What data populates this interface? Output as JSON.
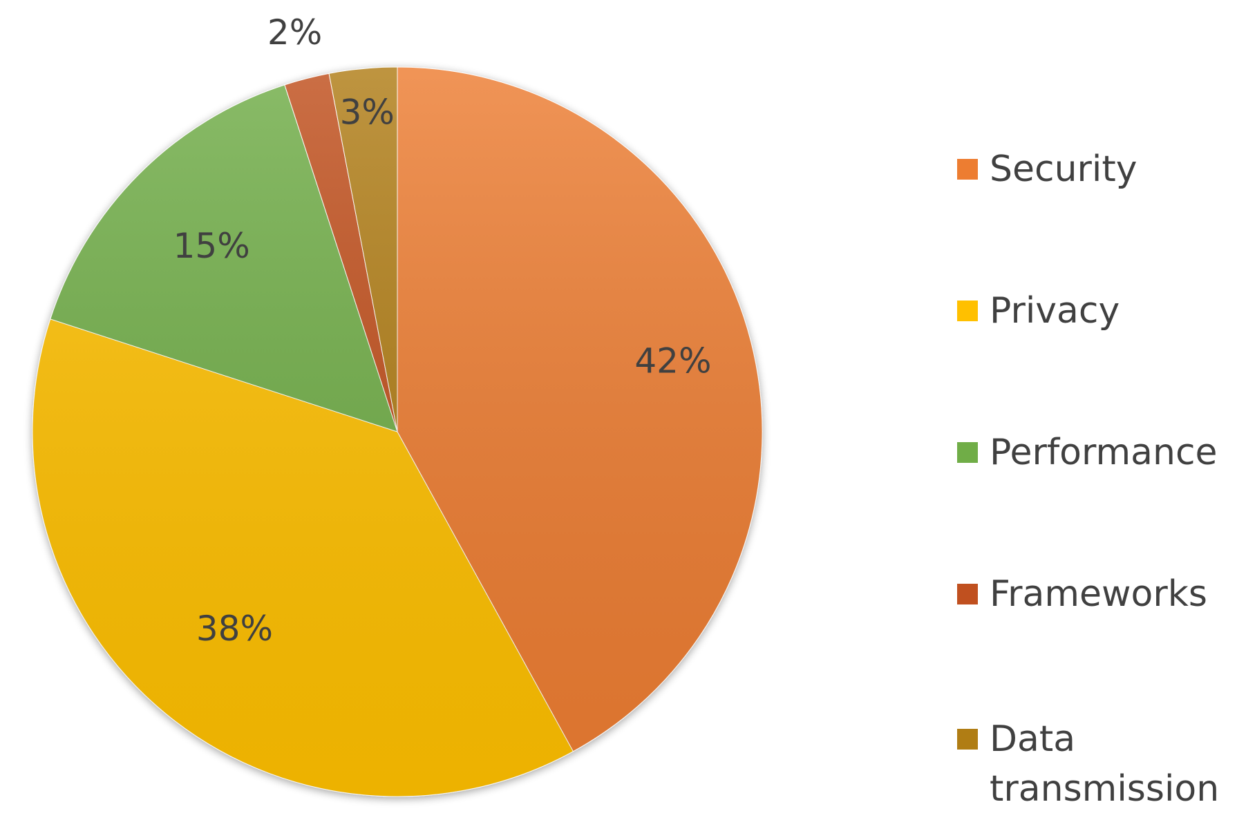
{
  "chart_data": {
    "type": "pie",
    "slices": [
      {
        "label": "Security",
        "value": 42,
        "data_label": "42%",
        "color": "#ED7D31"
      },
      {
        "label": "Privacy",
        "value": 38,
        "data_label": "38%",
        "color": "#FFC000"
      },
      {
        "label": "Performance",
        "value": 15,
        "data_label": "15%",
        "color": "#70AD47"
      },
      {
        "label": "Frameworks",
        "value": 2,
        "data_label": "2%",
        "color": "#C0501F"
      },
      {
        "label": "Data transmission",
        "value": 3,
        "data_label": "3%",
        "color": "#B07D14"
      }
    ],
    "start_angle": "12 o'clock",
    "direction": "clockwise",
    "legend": {
      "position": "right",
      "entries": [
        {
          "lines": [
            "Security"
          ]
        },
        {
          "lines": [
            "Privacy"
          ]
        },
        {
          "lines": [
            "Performance"
          ]
        },
        {
          "lines": [
            "Frameworks"
          ]
        },
        {
          "lines": [
            "Data",
            "transmission"
          ]
        }
      ]
    }
  }
}
